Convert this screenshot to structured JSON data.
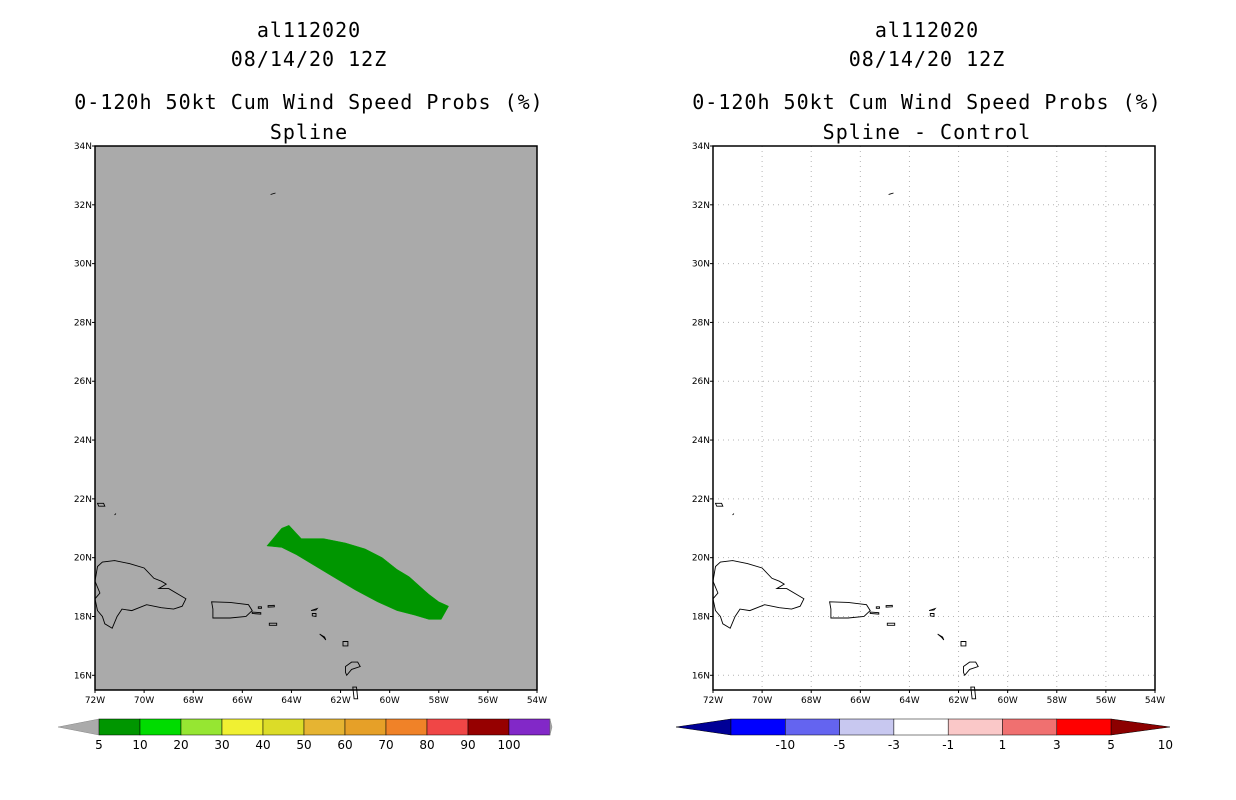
{
  "panels": [
    {
      "id": "left",
      "title_storm": "al112020",
      "title_date": "08/14/20 12Z",
      "title_product": "0-120h 50kt Cum Wind Speed Probs (%)",
      "subtitle": "Spline",
      "background": "#aaaaaa",
      "colorbar": {
        "labels": [
          "5",
          "10",
          "20",
          "30",
          "40",
          "50",
          "60",
          "70",
          "80",
          "90",
          "100"
        ],
        "colors": [
          "#009600",
          "#00dc00",
          "#96e632",
          "#f0f032",
          "#dcdc28",
          "#e6b432",
          "#e6a028",
          "#f08228",
          "#f04646",
          "#960000",
          "#8228c8"
        ],
        "end_color": "#aaaaaa"
      }
    },
    {
      "id": "right",
      "title_storm": "al112020",
      "title_date": "08/14/20 12Z",
      "title_product": "0-120h 50kt Cum Wind Speed Probs (%)",
      "subtitle": "Spline - Control",
      "background": "#ffffff",
      "colorbar": {
        "labels": [
          "-10",
          "-5",
          "-3",
          "-1",
          "1",
          "3",
          "5",
          "10"
        ],
        "colors": [
          "#0000ff",
          "#6464f0",
          "#c8c8f0",
          "#ffffff",
          "#fac8c8",
          "#f07070",
          "#ff0000"
        ],
        "end_left": "#000096",
        "end_right": "#8c0000"
      }
    }
  ],
  "map": {
    "lat_labels": [
      "34N",
      "32N",
      "30N",
      "28N",
      "26N",
      "24N",
      "22N",
      "20N",
      "18N",
      "16N"
    ],
    "lon_labels": [
      "72W",
      "70W",
      "68W",
      "66W",
      "64W",
      "62W",
      "60W",
      "58W",
      "56W",
      "54W"
    ],
    "lat_range": [
      15.5,
      34
    ],
    "lon_range": [
      -72,
      -54
    ],
    "probability_area_color": "#009600"
  }
}
